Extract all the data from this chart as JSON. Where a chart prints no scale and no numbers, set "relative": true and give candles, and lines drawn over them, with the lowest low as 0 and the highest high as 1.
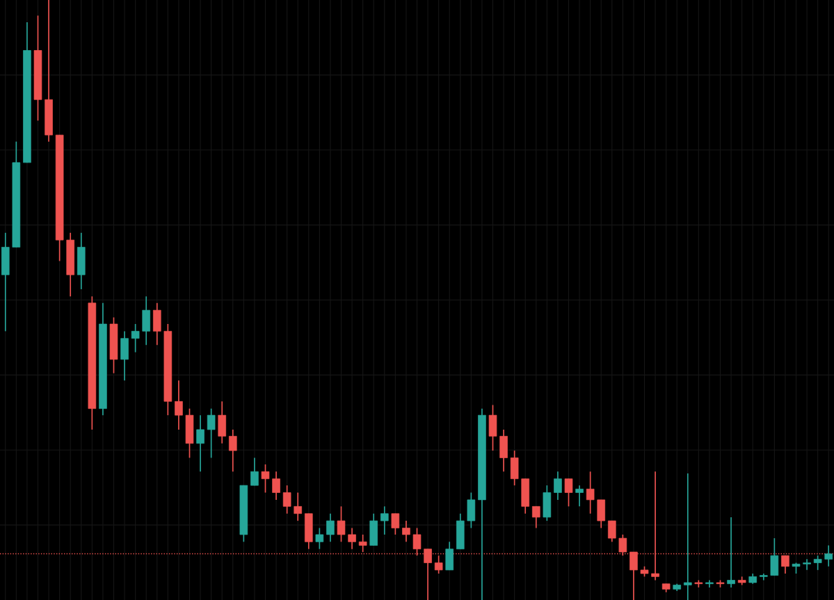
{
  "chart_data": {
    "type": "candlestick",
    "relative": true,
    "grid": true,
    "categories": [
      null,
      null,
      null,
      null,
      null,
      null,
      null,
      null,
      null,
      null,
      null,
      null,
      null,
      null,
      null,
      null,
      null,
      null,
      null,
      null,
      null,
      null,
      null,
      null,
      null,
      null,
      null,
      null,
      null,
      null,
      null,
      null,
      null,
      null,
      null,
      null,
      null,
      null,
      null,
      null,
      null,
      null,
      null,
      null,
      null,
      null,
      null,
      null,
      null,
      null,
      null,
      null,
      null,
      null,
      null,
      null,
      null,
      null,
      null,
      null,
      null,
      null,
      null,
      null,
      null,
      null,
      null,
      null,
      null,
      null,
      null,
      null,
      null,
      null,
      null,
      null,
      null
    ],
    "ohlc": [
      [
        0.542,
        0.612,
        0.448,
        0.588
      ],
      [
        0.588,
        0.764,
        0.588,
        0.729
      ],
      [
        0.729,
        0.963,
        0.729,
        0.916
      ],
      [
        0.916,
        0.974,
        0.799,
        0.834
      ],
      [
        0.834,
        1.0,
        0.764,
        0.775
      ],
      [
        0.775,
        0.775,
        0.565,
        0.6
      ],
      [
        0.6,
        0.612,
        0.506,
        0.542
      ],
      [
        0.542,
        0.612,
        0.518,
        0.588
      ],
      [
        0.495,
        0.506,
        0.284,
        0.319
      ],
      [
        0.319,
        0.495,
        0.308,
        0.46
      ],
      [
        0.46,
        0.471,
        0.378,
        0.401
      ],
      [
        0.401,
        0.448,
        0.366,
        0.436
      ],
      [
        0.436,
        0.46,
        0.413,
        0.448
      ],
      [
        0.448,
        0.506,
        0.425,
        0.483
      ],
      [
        0.483,
        0.495,
        0.425,
        0.448
      ],
      [
        0.448,
        0.46,
        0.308,
        0.331
      ],
      [
        0.331,
        0.366,
        0.284,
        0.308
      ],
      [
        0.308,
        0.319,
        0.237,
        0.261
      ],
      [
        0.261,
        0.308,
        0.214,
        0.284
      ],
      [
        0.284,
        0.319,
        0.237,
        0.308
      ],
      [
        0.308,
        0.331,
        0.261,
        0.273
      ],
      [
        0.273,
        0.284,
        0.214,
        0.249
      ],
      [
        0.109,
        0.191,
        0.097,
        0.191
      ],
      [
        0.191,
        0.237,
        0.191,
        0.214
      ],
      [
        0.214,
        0.226,
        0.179,
        0.202
      ],
      [
        0.202,
        0.214,
        0.167,
        0.179
      ],
      [
        0.179,
        0.191,
        0.144,
        0.156
      ],
      [
        0.156,
        0.179,
        0.132,
        0.144
      ],
      [
        0.144,
        0.144,
        0.085,
        0.097
      ],
      [
        0.097,
        0.12,
        0.085,
        0.109
      ],
      [
        0.109,
        0.144,
        0.097,
        0.132
      ],
      [
        0.132,
        0.156,
        0.097,
        0.109
      ],
      [
        0.109,
        0.12,
        0.085,
        0.097
      ],
      [
        0.097,
        0.109,
        0.08,
        0.091
      ],
      [
        0.091,
        0.144,
        0.091,
        0.132
      ],
      [
        0.132,
        0.156,
        0.109,
        0.144
      ],
      [
        0.144,
        0.144,
        0.109,
        0.12
      ],
      [
        0.12,
        0.132,
        0.097,
        0.109
      ],
      [
        0.109,
        0.12,
        0.074,
        0.085
      ],
      [
        0.085,
        0.085,
        0,
        0.062
      ],
      [
        0.062,
        0.074,
        0.044,
        0.05
      ],
      [
        0.05,
        0.097,
        0.05,
        0.085
      ],
      [
        0.085,
        0.144,
        0.085,
        0.132
      ],
      [
        0.132,
        0.179,
        0.12,
        0.167
      ],
      [
        0.167,
        0.319,
        0,
        0.308
      ],
      [
        0.308,
        0.325,
        0.249,
        0.273
      ],
      [
        0.273,
        0.284,
        0.214,
        0.237
      ],
      [
        0.237,
        0.249,
        0.191,
        0.202
      ],
      [
        0.202,
        0.202,
        0.144,
        0.156
      ],
      [
        0.156,
        0.156,
        0.12,
        0.138
      ],
      [
        0.138,
        0.191,
        0.132,
        0.179
      ],
      [
        0.179,
        0.214,
        0.167,
        0.202
      ],
      [
        0.202,
        0.202,
        0.156,
        0.179
      ],
      [
        0.179,
        0.191,
        0.156,
        0.185
      ],
      [
        0.185,
        0.214,
        0.144,
        0.167
      ],
      [
        0.167,
        0.167,
        0.12,
        0.132
      ],
      [
        0.132,
        0.132,
        0.097,
        0.103
      ],
      [
        0.103,
        0.109,
        0.074,
        0.08
      ],
      [
        0.08,
        0.08,
        0,
        0.05
      ],
      [
        0.05,
        0.056,
        0.039,
        0.044
      ],
      [
        0.044,
        0.214,
        0.033,
        0.039
      ],
      [
        0.027,
        0.027,
        0.013,
        0.018
      ],
      [
        0.018,
        0.027,
        0.015,
        0.025
      ],
      [
        0.025,
        0.211,
        0,
        0.029
      ],
      [
        0.029,
        0.033,
        0.021,
        0.027
      ],
      [
        0.027,
        0.033,
        0.021,
        0.029
      ],
      [
        0.029,
        0.033,
        0.021,
        0.027
      ],
      [
        0.027,
        0.138,
        0.021,
        0.033
      ],
      [
        0.033,
        0.039,
        0.025,
        0.029
      ],
      [
        0.029,
        0.044,
        0.027,
        0.039
      ],
      [
        0.039,
        0.044,
        0.033,
        0.041
      ],
      [
        0.041,
        0.103,
        0.041,
        0.074
      ],
      [
        0.074,
        0.074,
        0.044,
        0.056
      ],
      [
        0.056,
        0.062,
        0.044,
        0.06
      ],
      [
        0.06,
        0.068,
        0.05,
        0.062
      ],
      [
        0.062,
        0.074,
        0.05,
        0.068
      ],
      [
        0.068,
        0.091,
        0.056,
        0.077
      ]
    ],
    "colors": [
      "#26a69a",
      "#26a69a",
      "#26a69a",
      "#ef5350",
      "#ef5350",
      "#ef5350",
      "#ef5350",
      "#26a69a",
      "#ef5350",
      "#26a69a",
      "#ef5350",
      "#26a69a",
      "#26a69a",
      "#26a69a",
      "#ef5350",
      "#ef5350",
      "#ef5350",
      "#ef5350",
      "#26a69a",
      "#26a69a",
      "#ef5350",
      "#ef5350",
      "#26a69a",
      "#26a69a",
      "#ef5350",
      "#ef5350",
      "#ef5350",
      "#ef5350",
      "#ef5350",
      "#26a69a",
      "#26a69a",
      "#ef5350",
      "#ef5350",
      "#ef5350",
      "#26a69a",
      "#26a69a",
      "#ef5350",
      "#ef5350",
      "#ef5350",
      "#ef5350",
      "#ef5350",
      "#26a69a",
      "#26a69a",
      "#26a69a",
      "#26a69a",
      "#ef5350",
      "#ef5350",
      "#ef5350",
      "#ef5350",
      "#ef5350",
      "#26a69a",
      "#26a69a",
      "#ef5350",
      "#26a69a",
      "#ef5350",
      "#ef5350",
      "#ef5350",
      "#ef5350",
      "#ef5350",
      "#ef5350",
      "#ef5350",
      "#ef5350",
      "#26a69a",
      "#26a69a",
      "#ef5350",
      "#26a69a",
      "#ef5350",
      "#26a69a",
      "#ef5350",
      "#26a69a",
      "#26a69a",
      "#26a69a",
      "#ef5350",
      "#26a69a",
      "#26a69a",
      "#26a69a",
      "#26a69a"
    ],
    "ref_lines": [
      {
        "axis": "y",
        "value": 0.077,
        "color": "#ef5350",
        "line_style": "dotted"
      }
    ]
  }
}
